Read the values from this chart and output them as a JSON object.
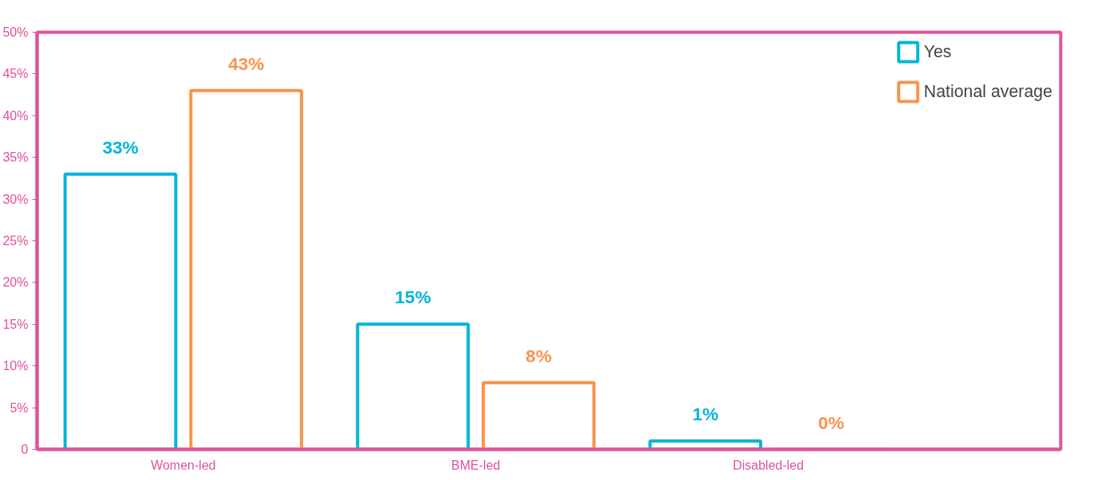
{
  "chart_data": {
    "type": "bar",
    "categories": [
      "Women-led",
      "BME-led",
      "Disabled-led"
    ],
    "series": [
      {
        "name": "Yes",
        "color": "#00b5d8",
        "values": [
          33,
          15,
          1
        ],
        "value_labels": [
          "33%",
          "15%",
          "1%"
        ]
      },
      {
        "name": "National average",
        "color": "#f7944b",
        "values": [
          43,
          8,
          0
        ],
        "value_labels": [
          "43%",
          "8%",
          "0%"
        ]
      }
    ],
    "ylim": [
      0,
      50
    ],
    "yticks": [
      0,
      {
        "value": 5,
        "label": "5%"
      },
      {
        "value": 10,
        "label": "10%"
      },
      {
        "value": 15,
        "label": "15%"
      },
      {
        "value": 20,
        "label": "20%"
      },
      {
        "value": 25,
        "label": "25%"
      },
      {
        "value": 30,
        "label": "30%"
      },
      {
        "value": 35,
        "label": "35%"
      },
      {
        "value": 40,
        "label": "40%"
      },
      {
        "value": 45,
        "label": "45%"
      },
      {
        "value": 50,
        "label": "50%"
      }
    ],
    "legend": "top right",
    "grid": false
  }
}
